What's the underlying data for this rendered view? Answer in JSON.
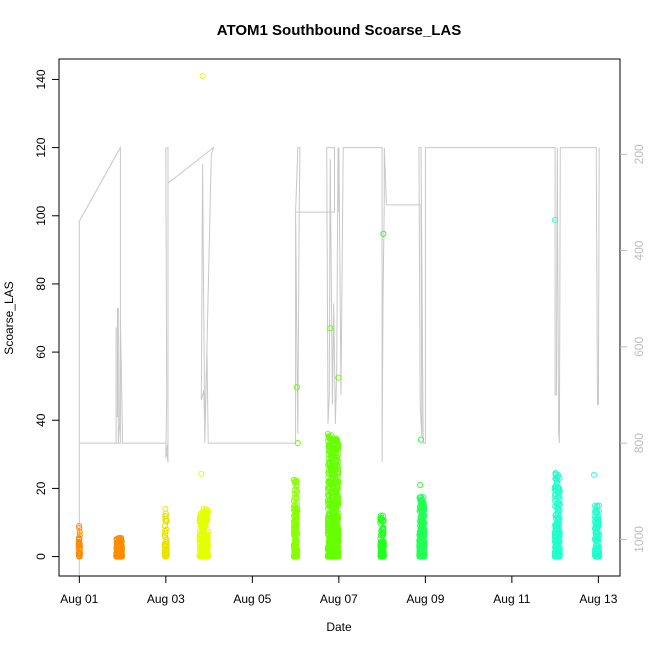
{
  "chart_data": {
    "type": "scatter",
    "title": "ATOM1 Southbound Scoarse_LAS",
    "xlabel": "Date",
    "ylabel": "Scoarse_LAS",
    "x_tick_labels": [
      "Aug 01",
      "Aug 03",
      "Aug 05",
      "Aug 07",
      "Aug 09",
      "Aug 11",
      "Aug 13"
    ],
    "x_tick_days": [
      1,
      3,
      5,
      7,
      9,
      11,
      13
    ],
    "xlim_days": [
      0.53,
      13.5
    ],
    "ylim": [
      -5.7,
      146
    ],
    "y_ticks": [
      0,
      20,
      40,
      60,
      80,
      100,
      120,
      140
    ],
    "y2_ticks": [
      200,
      400,
      600,
      800,
      1000
    ],
    "y2lim": [
      2,
      1076
    ],
    "grid": false,
    "secondary_series_color": "#c8c8c8",
    "clusters": [
      {
        "day": 1.0,
        "width": 0.03,
        "max": 9,
        "n": 35,
        "color": "#ff8800"
      },
      {
        "day": 1.92,
        "width": 0.13,
        "max": 5.5,
        "n": 200,
        "color": "#ff8c00"
      },
      {
        "day": 3.0,
        "width": 0.05,
        "max": 14,
        "n": 60,
        "color": "#e8e400"
      },
      {
        "day": 3.88,
        "width": 0.2,
        "max": 14,
        "n": 300,
        "color": "#e4ff00"
      },
      {
        "day": 6.0,
        "width": 0.08,
        "max": 22.5,
        "n": 150,
        "color": "#88ff00"
      },
      {
        "day": 6.87,
        "width": 0.25,
        "max": 36,
        "n": 600,
        "color": "#66ff00"
      },
      {
        "day": 8.0,
        "width": 0.08,
        "max": 12,
        "n": 120,
        "color": "#22ff22"
      },
      {
        "day": 8.92,
        "width": 0.12,
        "max": 17.5,
        "n": 300,
        "color": "#22ff55"
      },
      {
        "day": 12.05,
        "width": 0.12,
        "max": 24.5,
        "n": 250,
        "color": "#22ffcc"
      },
      {
        "day": 12.97,
        "width": 0.1,
        "max": 15,
        "n": 150,
        "color": "#22ffcc"
      }
    ],
    "outliers": [
      {
        "day": 3.85,
        "value": 141,
        "color": "#e4ff00"
      },
      {
        "day": 3.82,
        "value": 24.3,
        "color": "#e4ff00"
      },
      {
        "day": 6.03,
        "value": 49.7,
        "color": "#66ff00"
      },
      {
        "day": 6.05,
        "value": 33.3,
        "color": "#66ff00"
      },
      {
        "day": 6.8,
        "value": 67,
        "color": "#66ff00"
      },
      {
        "day": 6.99,
        "value": 52.5,
        "color": "#66ff00"
      },
      {
        "day": 8.03,
        "value": 94.7,
        "color": "#22ff22"
      },
      {
        "day": 8.9,
        "value": 34.3,
        "color": "#22ff22"
      },
      {
        "day": 8.88,
        "value": 21,
        "color": "#22ff22"
      },
      {
        "day": 12.0,
        "value": 98.8,
        "color": "#22ffcc"
      },
      {
        "day": 12.9,
        "value": 24,
        "color": "#22ffcc"
      }
    ],
    "secondary_series": [
      [
        1.0,
        1077
      ],
      [
        1.0,
        800
      ],
      [
        1.0,
        339
      ],
      [
        1.95,
        186
      ],
      [
        1.95,
        800
      ],
      [
        1.0,
        800
      ],
      [
        1.85,
        800
      ],
      [
        1.85,
        560
      ],
      [
        1.85,
        744
      ],
      [
        1.88,
        745
      ],
      [
        1.88,
        520
      ],
      [
        1.9,
        520
      ],
      [
        1.9,
        800
      ],
      [
        1.93,
        760
      ],
      [
        1.95,
        540
      ],
      [
        2.0,
        800
      ],
      [
        3.0,
        800
      ],
      [
        3.05,
        840
      ],
      [
        3.05,
        186
      ],
      [
        3.0,
        187
      ],
      [
        3.02,
        700
      ],
      [
        3.0,
        830
      ],
      [
        3.05,
        800
      ],
      [
        3.05,
        260
      ],
      [
        4.1,
        186
      ],
      [
        4.05,
        200
      ],
      [
        3.9,
        800
      ],
      [
        3.85,
        220
      ],
      [
        3.82,
        710
      ],
      [
        3.88,
        690
      ],
      [
        3.9,
        780
      ],
      [
        3.95,
        600
      ],
      [
        3.98,
        800
      ],
      [
        6.0,
        800
      ],
      [
        6.0,
        320
      ],
      [
        6.05,
        780
      ],
      [
        6.08,
        350
      ],
      [
        6.1,
        186
      ],
      [
        6.05,
        186
      ],
      [
        6.0,
        320
      ],
      [
        6.9,
        320
      ],
      [
        6.9,
        186
      ],
      [
        6.72,
        186
      ],
      [
        6.75,
        760
      ],
      [
        6.78,
        700
      ],
      [
        6.8,
        210
      ],
      [
        6.85,
        720
      ],
      [
        6.88,
        510
      ],
      [
        6.92,
        760
      ],
      [
        6.95,
        650
      ],
      [
        6.98,
        186
      ],
      [
        7.0,
        320
      ],
      [
        7.0,
        186
      ],
      [
        7.05,
        700
      ],
      [
        7.1,
        186
      ],
      [
        8.0,
        186
      ],
      [
        8.0,
        840
      ],
      [
        8.02,
        500
      ],
      [
        8.05,
        300
      ],
      [
        8.05,
        186
      ],
      [
        8.1,
        305
      ],
      [
        8.9,
        305
      ],
      [
        8.92,
        790
      ],
      [
        8.88,
        720
      ],
      [
        8.85,
        186
      ],
      [
        8.9,
        186
      ],
      [
        8.95,
        800
      ],
      [
        9.0,
        800
      ],
      [
        9.0,
        186
      ],
      [
        12.0,
        186
      ],
      [
        12.0,
        700
      ],
      [
        12.03,
        700
      ],
      [
        12.05,
        186
      ],
      [
        12.08,
        775
      ],
      [
        12.1,
        800
      ],
      [
        12.12,
        186
      ],
      [
        12.95,
        186
      ],
      [
        12.98,
        720
      ],
      [
        13.0,
        720
      ],
      [
        13.02,
        186
      ]
    ]
  }
}
